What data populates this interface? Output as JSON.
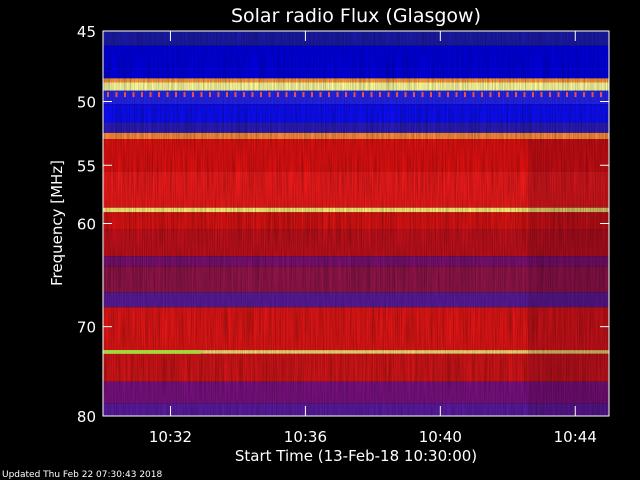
{
  "chart_data": {
    "type": "heatmap",
    "title": "Solar radio Flux (Glasgow)",
    "xlabel": "Start Time (13-Feb-18 10:30:00)",
    "ylabel": "Frequency [MHz]",
    "x_range_minutes": [
      0,
      15
    ],
    "y_range_mhz": [
      45,
      80
    ],
    "x_tick_labels": [
      {
        "minute": 2,
        "label": "10:32"
      },
      {
        "minute": 6,
        "label": "10:36"
      },
      {
        "minute": 10,
        "label": "10:40"
      },
      {
        "minute": 14,
        "label": "10:44"
      }
    ],
    "y_tick_labels": [
      {
        "mhz": 45,
        "label": "45"
      },
      {
        "mhz": 50,
        "label": "50"
      },
      {
        "mhz": 55,
        "label": "55"
      },
      {
        "mhz": 60,
        "label": "60"
      },
      {
        "mhz": 70,
        "label": "70"
      },
      {
        "mhz": 80,
        "label": "80"
      }
    ],
    "y_scale": "log",
    "bands": [
      {
        "from": 45.0,
        "to": 46.0,
        "color": "#1a1aa8"
      },
      {
        "from": 46.0,
        "to": 48.3,
        "color": "#0000e0"
      },
      {
        "from": 48.3,
        "to": 48.6,
        "color": "#ff9a3a"
      },
      {
        "from": 48.6,
        "to": 49.2,
        "color": "#ffffa0"
      },
      {
        "from": 49.2,
        "to": 50.2,
        "color": "#2424f0"
      },
      {
        "from": 50.2,
        "to": 51.6,
        "color": "#0d0df5"
      },
      {
        "from": 51.6,
        "to": 52.4,
        "color": "#2a1ab8"
      },
      {
        "from": 52.4,
        "to": 52.9,
        "color": "#ff8a3a"
      },
      {
        "from": 52.9,
        "to": 55.5,
        "color": "#e01010"
      },
      {
        "from": 55.5,
        "to": 58.6,
        "color": "#ee1a1a"
      },
      {
        "from": 58.6,
        "to": 59.0,
        "color": "#ffee70"
      },
      {
        "from": 59.0,
        "to": 60.5,
        "color": "#d81212"
      },
      {
        "from": 60.5,
        "to": 63.0,
        "color": "#c0101a"
      },
      {
        "from": 63.0,
        "to": 64.0,
        "color": "#7a1070"
      },
      {
        "from": 64.0,
        "to": 66.5,
        "color": "#901448"
      },
      {
        "from": 66.5,
        "to": 68.0,
        "color": "#5a1a9a"
      },
      {
        "from": 68.0,
        "to": 72.5,
        "color": "#e01515"
      },
      {
        "from": 72.5,
        "to": 72.9,
        "color": "#ffe070"
      },
      {
        "from": 72.9,
        "to": 76.0,
        "color": "#d01418"
      },
      {
        "from": 76.0,
        "to": 78.5,
        "color": "#7a1080"
      },
      {
        "from": 78.5,
        "to": 80.0,
        "color": "#5a1aa0"
      }
    ],
    "footer": "Updated Thu Feb 22 07:30:43 2018"
  }
}
